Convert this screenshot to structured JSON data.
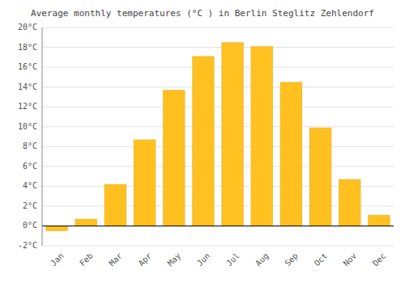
{
  "chart_data": {
    "type": "bar",
    "title": "Average monthly temperatures (°C ) in Berlin Steglitz Zehlendorf",
    "categories": [
      "Jan",
      "Feb",
      "Mar",
      "Apr",
      "May",
      "Jun",
      "Jul",
      "Aug",
      "Sep",
      "Oct",
      "Nov",
      "Dec"
    ],
    "values": [
      -0.5,
      0.7,
      4.2,
      8.7,
      13.7,
      17.1,
      18.5,
      18.1,
      14.5,
      9.9,
      4.7,
      1.1
    ],
    "color": "#FFC020",
    "ylim": [
      -2,
      20
    ],
    "yticks": [
      {
        "value": -2,
        "label": "-2°C"
      },
      {
        "value": 0,
        "label": "0°C"
      },
      {
        "value": 2,
        "label": "2°C"
      },
      {
        "value": 4,
        "label": "4°C"
      },
      {
        "value": 6,
        "label": "6°C"
      },
      {
        "value": 8,
        "label": "8°C"
      },
      {
        "value": 10,
        "label": "10°C"
      },
      {
        "value": 12,
        "label": "12°C"
      },
      {
        "value": 14,
        "label": "14°C"
      },
      {
        "value": 16,
        "label": "16°C"
      },
      {
        "value": 18,
        "label": "18°C"
      },
      {
        "value": 20,
        "label": "20°C"
      }
    ],
    "grid": true
  }
}
